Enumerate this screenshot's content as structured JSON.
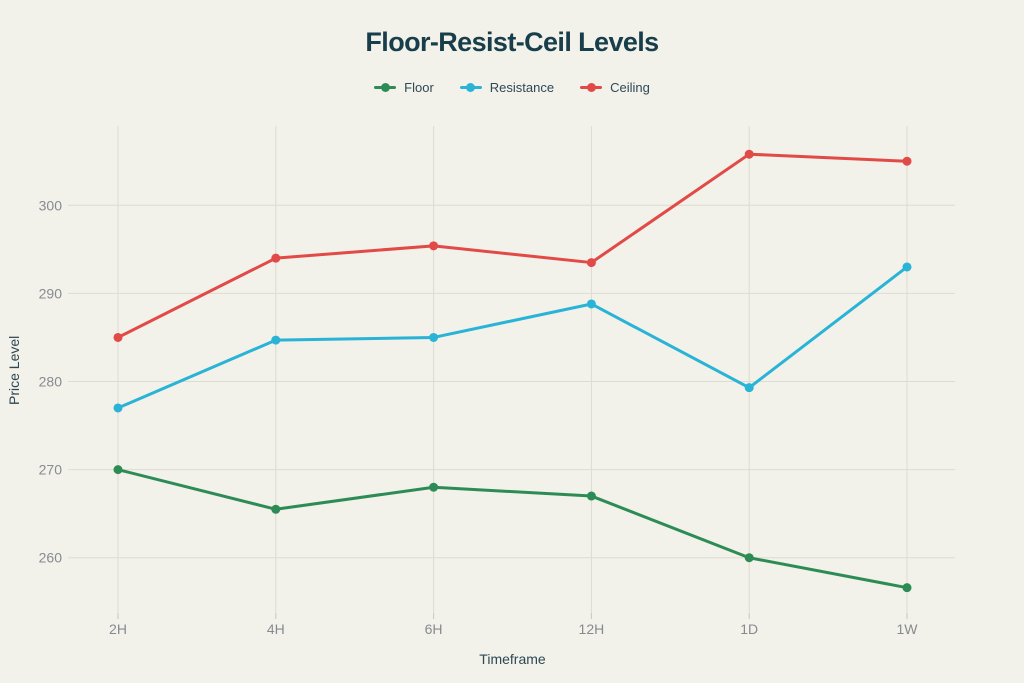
{
  "chart": {
    "title": "Floor-Resist-Ceil Levels"
  },
  "chart_data": {
    "type": "line",
    "title": "Floor-Resist-Ceil Levels",
    "categories": [
      "2H",
      "4H",
      "6H",
      "12H",
      "1D",
      "1W"
    ],
    "series": [
      {
        "name": "Floor",
        "color": "#2d8c55",
        "values": [
          270,
          265.5,
          268,
          267,
          260,
          256.6
        ]
      },
      {
        "name": "Resistance",
        "color": "#29b3d7",
        "values": [
          277,
          284.7,
          285,
          288.8,
          279.3,
          293
        ]
      },
      {
        "name": "Ceiling",
        "color": "#e14a46",
        "values": [
          285,
          294,
          295.4,
          293.5,
          305.8,
          305
        ]
      }
    ],
    "xlabel": "Timeframe",
    "ylabel": "Price Level",
    "yticks": [
      260,
      270,
      280,
      290,
      300
    ],
    "ylim": [
      253.5,
      309
    ],
    "grid": true,
    "legend_position": "top",
    "marker": "circle"
  },
  "colors": {
    "background": "#f2f1ea",
    "title_text": "#173e4a",
    "axis_title_text": "#2d4753",
    "legend_text": "#2e4956",
    "tick_text": "#878b91",
    "gridline": "#dddcd2",
    "tick_mark": "#c8c8be"
  }
}
